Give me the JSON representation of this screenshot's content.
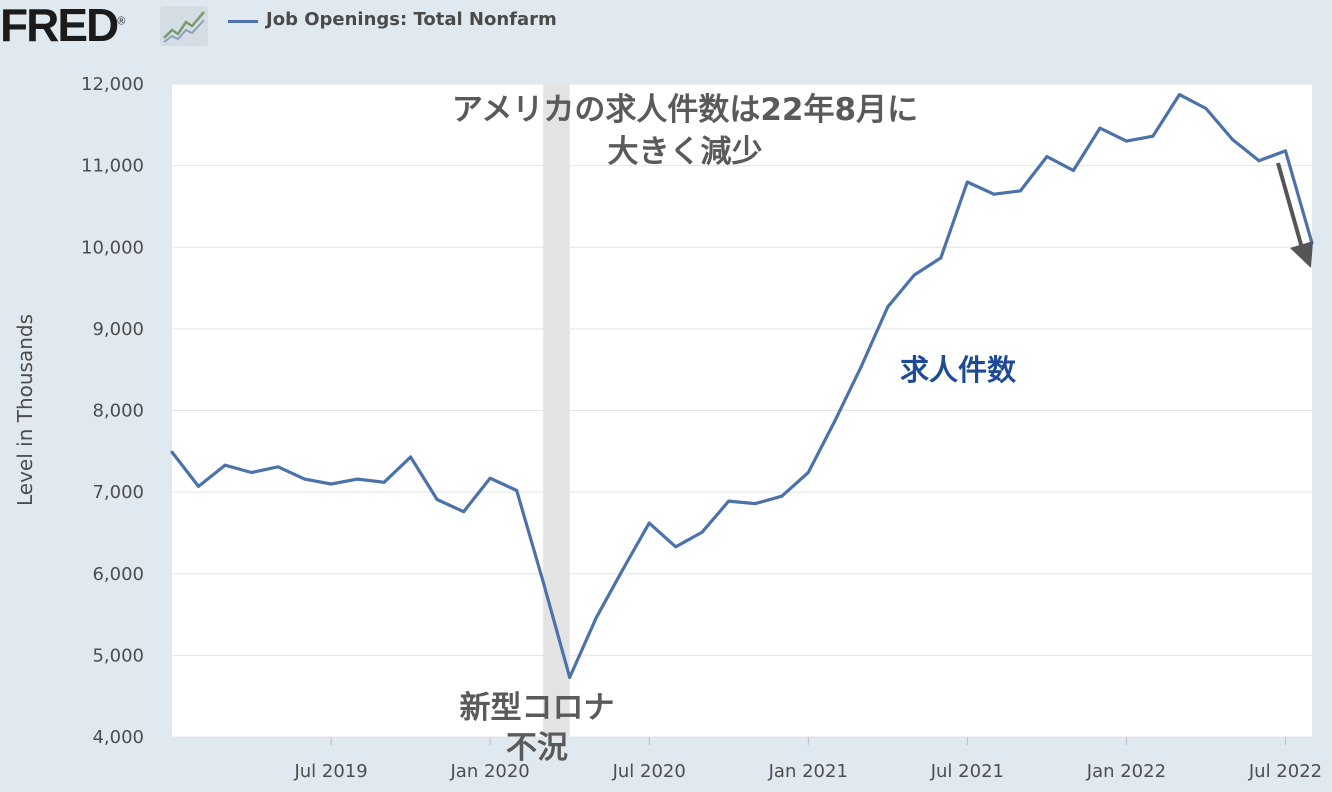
{
  "header": {
    "logo_text": "FRED",
    "logo_mark": "®",
    "series_label": "Job Openings: Total Nonfarm"
  },
  "colors": {
    "series": "#4c72aa",
    "recession": "#e3e3e3",
    "background": "#e1e9f0",
    "plot": "#ffffff",
    "arrow": "#555555",
    "annotation_blue": "#1f4b96"
  },
  "annotations": {
    "headline_line1": "アメリカの求人件数は22年8月に",
    "headline_line2": "大きく減少",
    "series_jp": "求人件数",
    "recession_line1": "新型コロナ",
    "recession_line2": "不況"
  },
  "chart_data": {
    "type": "line",
    "title": "",
    "xlabel": "",
    "ylabel": "Level in Thousands",
    "ylim": [
      4000,
      12000
    ],
    "yticks": [
      4000,
      5000,
      6000,
      7000,
      8000,
      9000,
      10000,
      11000,
      12000
    ],
    "ytick_labels": [
      "4,000",
      "5,000",
      "6,000",
      "7,000",
      "8,000",
      "9,000",
      "10,000",
      "11,000",
      "12,000"
    ],
    "xrange": [
      "2019-01",
      "2022-08"
    ],
    "xtick_labels": [
      {
        "date": "2019-07",
        "label": "Jul 2019"
      },
      {
        "date": "2020-01",
        "label": "Jan 2020"
      },
      {
        "date": "2020-07",
        "label": "Jul 2020"
      },
      {
        "date": "2021-01",
        "label": "Jan 2021"
      },
      {
        "date": "2021-07",
        "label": "Jul 2021"
      },
      {
        "date": "2022-01",
        "label": "Jan 2022"
      },
      {
        "date": "2022-07",
        "label": "Jul 2022"
      }
    ],
    "recession": [
      "2020-03",
      "2020-04"
    ],
    "grid": true,
    "legend": "top-left",
    "series": [
      {
        "name": "Job Openings: Total Nonfarm",
        "x": [
          "2019-01",
          "2019-02",
          "2019-03",
          "2019-04",
          "2019-05",
          "2019-06",
          "2019-07",
          "2019-08",
          "2019-09",
          "2019-10",
          "2019-11",
          "2019-12",
          "2020-01",
          "2020-02",
          "2020-03",
          "2020-04",
          "2020-05",
          "2020-06",
          "2020-07",
          "2020-08",
          "2020-09",
          "2020-10",
          "2020-11",
          "2020-12",
          "2021-01",
          "2021-02",
          "2021-03",
          "2021-04",
          "2021-05",
          "2021-06",
          "2021-07",
          "2021-08",
          "2021-09",
          "2021-10",
          "2021-11",
          "2021-12",
          "2022-01",
          "2022-02",
          "2022-03",
          "2022-04",
          "2022-05",
          "2022-06",
          "2022-07",
          "2022-08"
        ],
        "values": [
          7490,
          7070,
          7330,
          7240,
          7310,
          7160,
          7100,
          7160,
          7120,
          7430,
          6910,
          6760,
          7170,
          7020,
          5900,
          4730,
          5460,
          6050,
          6620,
          6330,
          6510,
          6890,
          6860,
          6950,
          7240,
          7870,
          8540,
          9270,
          9660,
          9870,
          10800,
          10650,
          10690,
          11110,
          10940,
          11460,
          11300,
          11360,
          11870,
          11700,
          11320,
          11060,
          11180,
          10050
        ]
      }
    ]
  }
}
